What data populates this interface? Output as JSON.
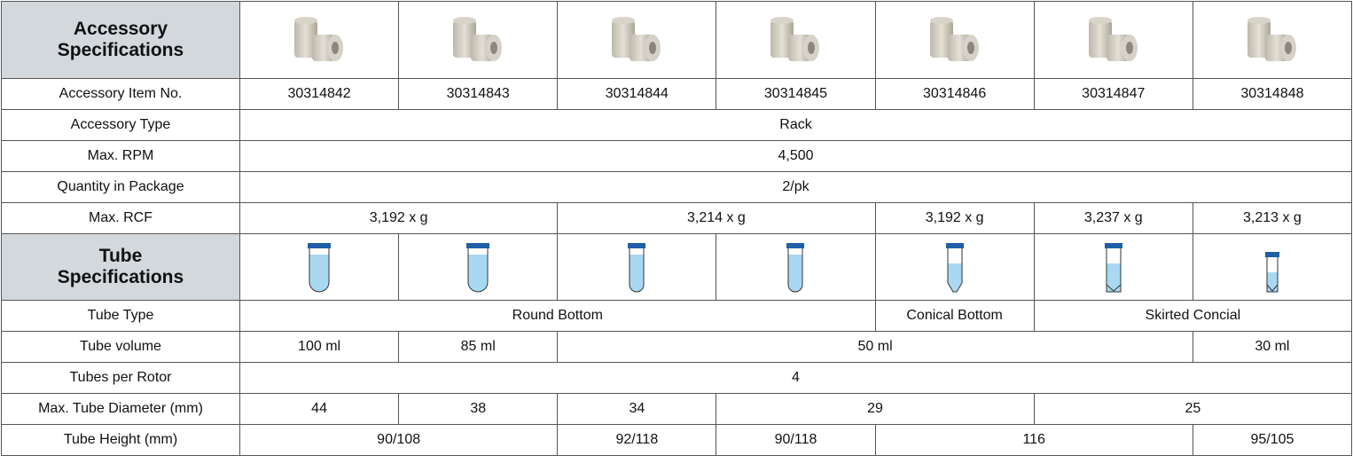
{
  "accessory_section": {
    "title": "Accessory Specifications",
    "rows": [
      {
        "label": "Accessory Item No.",
        "cells": [
          "30314842",
          "30314843",
          "30314844",
          "30314845",
          "30314846",
          "30314847",
          "30314848"
        ]
      },
      {
        "label": "Accessory Type",
        "cells": [
          "Rack"
        ]
      },
      {
        "label": "Max. RPM",
        "cells": [
          "4,500"
        ]
      },
      {
        "label": "Quantity in Package",
        "cells": [
          "2/pk"
        ]
      },
      {
        "label": "Max. RCF",
        "cells": [
          "3,192 x g",
          "3,214 x g",
          "3,192 x g",
          "3,237 x g",
          "3,213 x g"
        ]
      }
    ]
  },
  "tube_section": {
    "title": "Tube Specifications",
    "rows": [
      {
        "label": "Tube Type",
        "cells": [
          "Round Bottom",
          "Conical Bottom",
          "Skirted Concial"
        ]
      },
      {
        "label": "Tube volume",
        "cells": [
          "100 ml",
          "85 ml",
          "50 ml",
          "30 ml"
        ]
      },
      {
        "label": "Tubes per Rotor",
        "cells": [
          "4"
        ]
      },
      {
        "label": "Max. Tube Diameter (mm)",
        "cells": [
          "44",
          "38",
          "34",
          "29",
          "25"
        ]
      },
      {
        "label": "Tube Height (mm)",
        "cells": [
          "90/108",
          "92/118",
          "90/118",
          "116",
          "95/105"
        ]
      }
    ]
  }
}
